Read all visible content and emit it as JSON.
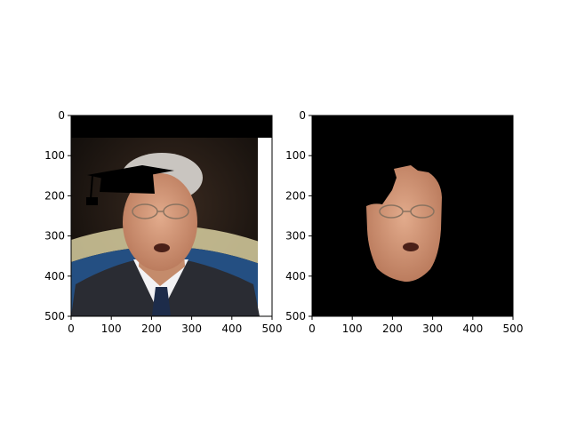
{
  "figure": {
    "panels": [
      {
        "id": "left",
        "image": "portrait-with-graduation-cap-overlay",
        "xlim": [
          0,
          500
        ],
        "ylim": [
          500,
          0
        ],
        "xticks": [
          "0",
          "100",
          "200",
          "300",
          "400",
          "500"
        ],
        "yticks": [
          "0",
          "100",
          "200",
          "300",
          "400",
          "500"
        ]
      },
      {
        "id": "right",
        "image": "face-segmentation-mask-result",
        "xlim": [
          0,
          500
        ],
        "ylim": [
          500,
          0
        ],
        "xticks": [
          "0",
          "100",
          "200",
          "300",
          "400",
          "500"
        ],
        "yticks": [
          "0",
          "100",
          "200",
          "300",
          "400",
          "500"
        ]
      }
    ]
  },
  "colors": {
    "mask_background": "#000000",
    "skin": "#d8a080",
    "suit": "#2a2c33",
    "shirt": "#f2f2f4",
    "tie": "#1d2c4a",
    "stripe_blue": "#244f82",
    "stripe_cream": "#d8cfa0"
  }
}
